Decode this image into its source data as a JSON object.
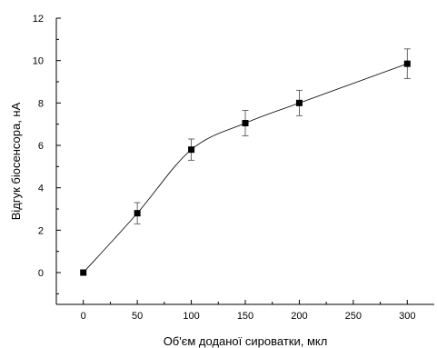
{
  "chart_data": {
    "type": "scatter",
    "title": "",
    "xlabel": "Об'єм доданої сироватки, мкл",
    "ylabel": "Відгук біосенсора, нА",
    "xlim": [
      -25,
      325
    ],
    "ylim": [
      -1.5,
      12
    ],
    "x_ticks": [
      0,
      50,
      100,
      150,
      200,
      250,
      300
    ],
    "y_ticks": [
      0,
      2,
      4,
      6,
      8,
      10,
      12
    ],
    "grid": false,
    "legend": "none",
    "marker": "square",
    "fit_line": true,
    "series": [
      {
        "x": [
          0,
          50,
          100,
          150,
          200,
          300
        ],
        "y": [
          0,
          2.8,
          5.8,
          7.05,
          8.0,
          9.85
        ],
        "error": [
          0,
          0.5,
          0.5,
          0.6,
          0.6,
          0.7
        ]
      }
    ]
  }
}
